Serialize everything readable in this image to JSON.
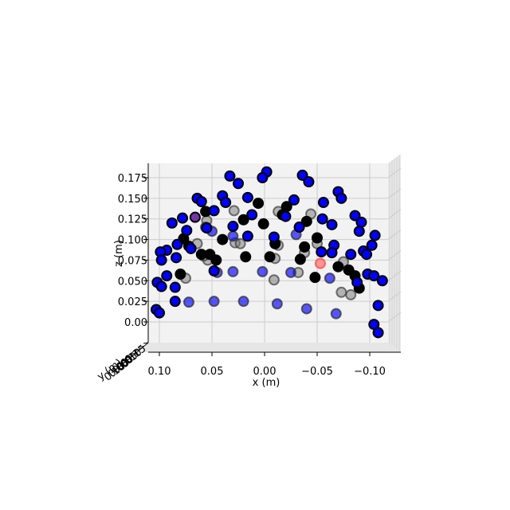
{
  "chart_data": {
    "type": "scatter",
    "projection": "3d-orthographic-front-view",
    "title": "",
    "xlabel": "x (m)",
    "ylabel": "y (m)",
    "zlabel": "z (m)",
    "xlim": [
      0.12,
      -0.125
    ],
    "zlim": [
      -0.02,
      0.19
    ],
    "x_ticks": [
      0.1,
      0.05,
      0.0,
      -0.05,
      -0.1
    ],
    "x_tick_labels": [
      "0.10",
      "0.05",
      "0.00",
      "−0.05",
      "−0.10"
    ],
    "z_ticks": [
      0.0,
      0.025,
      0.05,
      0.075,
      0.1,
      0.125,
      0.15,
      0.175
    ],
    "z_tick_labels": [
      "0.00",
      "0.025",
      "0.050",
      "0.075",
      "0.100",
      "0.125",
      "0.150",
      "0.175"
    ],
    "y_tick_labels": [
      "−0.15",
      "−0.10",
      "−0.05",
      "0.00",
      "0.05",
      "0.10"
    ],
    "grid": true,
    "pane_color": "#f2f2f2",
    "grid_color": "#cccccc",
    "series": [
      {
        "color": "#0000ff",
        "edge_color": "#000000",
        "points": [
          [
            0.033,
            0.177
          ],
          [
            0.025,
            0.168
          ],
          [
            -0.002,
            0.182
          ],
          [
            0.002,
            0.175
          ],
          [
            -0.036,
            0.178
          ],
          [
            -0.042,
            0.17
          ],
          [
            0.064,
            0.15
          ],
          [
            0.06,
            0.146
          ],
          [
            0.04,
            0.153
          ],
          [
            0.016,
            0.151
          ],
          [
            -0.028,
            0.148
          ],
          [
            -0.056,
            0.145
          ],
          [
            -0.07,
            0.158
          ],
          [
            -0.073,
            0.15
          ],
          [
            0.048,
            0.135
          ],
          [
            0.012,
            0.13
          ],
          [
            -0.02,
            0.128
          ],
          [
            -0.055,
            0.125
          ],
          [
            0.088,
            0.12
          ],
          [
            0.078,
            0.126
          ],
          [
            0.074,
            0.111
          ],
          [
            0.055,
            0.114
          ],
          [
            0.03,
            0.116
          ],
          [
            -0.064,
            0.118
          ],
          [
            -0.086,
            0.129
          ],
          [
            -0.092,
            0.121
          ],
          [
            -0.09,
            0.11
          ],
          [
            0.093,
            0.087
          ],
          [
            0.099,
            0.085
          ],
          [
            0.084,
            0.078
          ],
          [
            0.098,
            0.075
          ],
          [
            0.07,
            0.089
          ],
          [
            -0.054,
            0.085
          ],
          [
            -0.066,
            0.093
          ],
          [
            -0.082,
            0.082
          ],
          [
            -0.094,
            0.086
          ],
          [
            -0.102,
            0.093
          ],
          [
            -0.097,
            0.082
          ],
          [
            0.093,
            0.056
          ],
          [
            0.102,
            0.048
          ],
          [
            0.098,
            0.043
          ],
          [
            0.085,
            0.042
          ],
          [
            -0.088,
            0.048
          ],
          [
            -0.098,
            0.058
          ],
          [
            -0.104,
            0.056
          ],
          [
            -0.112,
            0.05
          ],
          [
            0.103,
            0.015
          ],
          [
            0.1,
            0.011
          ],
          [
            0.085,
            0.025
          ],
          [
            -0.108,
            0.02
          ],
          [
            -0.104,
            -0.003
          ],
          [
            -0.108,
            -0.013
          ],
          [
            0.083,
            0.094
          ],
          [
            -0.105,
            0.105
          ],
          [
            0.037,
            0.145
          ],
          [
            -0.009,
            0.103
          ],
          [
            0.016,
            0.104
          ],
          [
            -0.033,
            0.115
          ],
          [
            0.048,
            0.062
          ],
          [
            -0.064,
            0.084
          ]
        ]
      },
      {
        "color": "#000000",
        "edge_color": "#000000",
        "points": [
          [
            0.02,
            0.124
          ],
          [
            0.001,
            0.119
          ],
          [
            -0.017,
            0.13
          ],
          [
            -0.04,
            0.122
          ],
          [
            0.006,
            0.144
          ],
          [
            -0.021,
            0.14
          ],
          [
            0.056,
            0.134
          ],
          [
            0.072,
            0.092
          ],
          [
            0.06,
            0.082
          ],
          [
            0.046,
            0.075
          ],
          [
            0.018,
            0.079
          ],
          [
            -0.01,
            0.095
          ],
          [
            -0.038,
            0.091
          ],
          [
            -0.034,
            0.076
          ],
          [
            -0.08,
            0.063
          ],
          [
            -0.07,
            0.067
          ],
          [
            -0.086,
            0.056
          ],
          [
            -0.048,
            0.054
          ],
          [
            -0.09,
            0.041
          ],
          [
            0.08,
            0.058
          ],
          [
            0.052,
            0.082
          ],
          [
            -0.005,
            0.079
          ],
          [
            0.04,
            0.1
          ],
          [
            0.077,
            0.101
          ],
          [
            -0.05,
            0.102
          ]
        ]
      },
      {
        "color": "#0000ff",
        "edge_color": "#333333",
        "alpha": 0.65,
        "points": [
          [
            0.03,
            0.104
          ],
          [
            0.05,
            0.11
          ],
          [
            0.045,
            0.06
          ],
          [
            0.03,
            0.061
          ],
          [
            -0.025,
            0.06
          ],
          [
            -0.062,
            0.053
          ],
          [
            0.072,
            0.024
          ],
          [
            0.048,
            0.025
          ],
          [
            0.02,
            0.025
          ],
          [
            -0.012,
            0.022
          ],
          [
            -0.04,
            0.016
          ],
          [
            -0.068,
            0.01
          ],
          [
            0.002,
            0.061
          ],
          [
            0.056,
            0.115
          ],
          [
            -0.03,
            0.106
          ]
        ]
      },
      {
        "color": "#808080",
        "edge_color": "#333333",
        "alpha": 0.55,
        "points": [
          [
            0.055,
            0.123
          ],
          [
            0.029,
            0.135
          ],
          [
            -0.013,
            0.134
          ],
          [
            -0.044,
            0.131
          ],
          [
            0.028,
            0.096
          ],
          [
            0.064,
            0.095
          ],
          [
            0.054,
            0.075
          ],
          [
            0.023,
            0.095
          ],
          [
            -0.013,
            0.093
          ],
          [
            -0.05,
            0.095
          ],
          [
            -0.075,
            0.073
          ],
          [
            0.075,
            0.053
          ],
          [
            -0.009,
            0.051
          ],
          [
            -0.032,
            0.06
          ],
          [
            -0.082,
            0.033
          ],
          [
            -0.073,
            0.036
          ],
          [
            0.058,
            0.08
          ],
          [
            -0.01,
            0.077
          ],
          [
            -0.038,
            0.084
          ]
        ]
      },
      {
        "color": "#7733aa",
        "edge_color": "#000000",
        "points": [
          [
            0.066,
            0.127
          ]
        ]
      },
      {
        "color": "#ff8080",
        "edge_color": "#ff5555",
        "alpha": 0.8,
        "points": [
          [
            -0.053,
            0.071
          ]
        ]
      }
    ]
  }
}
